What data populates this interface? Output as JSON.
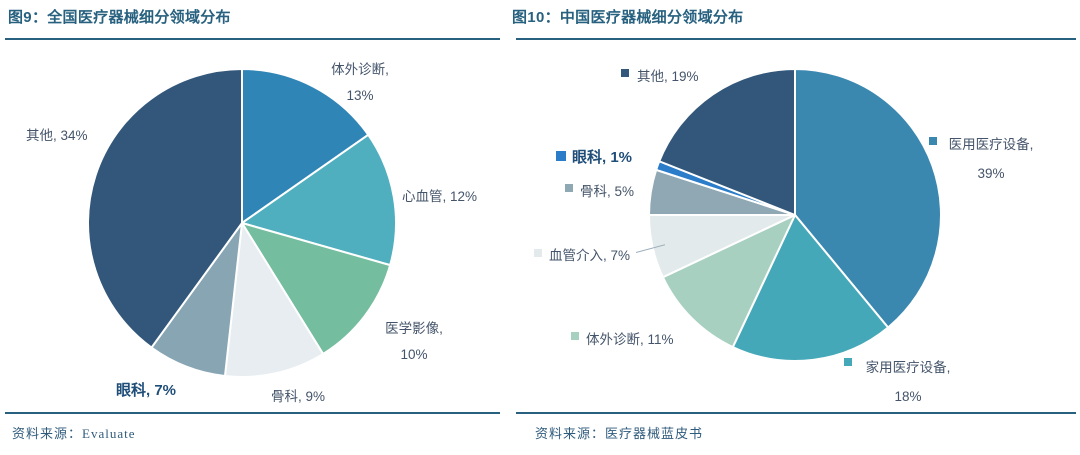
{
  "style_colors": {
    "title": "#27617F",
    "rule_line": "#27617F",
    "label": "#44546A",
    "label_bold": "#1F4E79",
    "source": "#2F5B7C",
    "slice_border": "#ffffff"
  },
  "figures": [
    {
      "id": "fig9",
      "title": "图9：全国医疗器械细分领域分布",
      "source": "资料来源：Evaluate",
      "chart_data": {
        "type": "pie",
        "title": "全国医疗器械细分领域分布",
        "categories": [
          "体外诊断",
          "心血管",
          "医学影像",
          "骨科",
          "眼科",
          "其他"
        ],
        "values": [
          13,
          12,
          10,
          9,
          7,
          34
        ],
        "unit": "percent",
        "start_angle_deg": 0,
        "direction": "clockwise",
        "values_total_shown": 85,
        "colors": [
          "#2F85B6",
          "#4FAFBE",
          "#74BD9F",
          "#E7EDF0",
          "#87A5B3",
          "#33577A"
        ],
        "labels": [
          {
            "line1": "体外诊断,",
            "line2": "13%"
          },
          {
            "line1": "心血管, 12%"
          },
          {
            "line1": "医学影像,",
            "line2": "10%"
          },
          {
            "line1": "骨科, 9%"
          },
          {
            "line1": "眼科, 7%",
            "bold": true
          },
          {
            "line1": "其他, 34%"
          }
        ]
      }
    },
    {
      "id": "fig10",
      "title": "图10：中国医疗器械细分领域分布",
      "source": "资料来源：医疗器械蓝皮书",
      "chart_data": {
        "type": "pie",
        "title": "中国医疗器械细分领域分布",
        "categories": [
          "医用医疗设备",
          "家用医疗设备",
          "体外诊断",
          "血管介入",
          "骨科",
          "眼科",
          "其他"
        ],
        "values": [
          39,
          18,
          11,
          7,
          5,
          1,
          19
        ],
        "unit": "percent",
        "start_angle_deg": 0,
        "direction": "clockwise",
        "values_total_shown": 100,
        "colors": [
          "#3A87B0",
          "#45A8B8",
          "#A8D0C0",
          "#E2EAEC",
          "#8FA8B4",
          "#2B7CC9",
          "#33577A"
        ],
        "labels": [
          {
            "line1": "医用医疗设备,",
            "line2": "39%",
            "marker": true
          },
          {
            "line1": "家用医疗设备,",
            "line2": "18%",
            "marker": true
          },
          {
            "line1": "体外诊断, 11%",
            "marker": true
          },
          {
            "line1": "血管介入, 7%",
            "marker": true,
            "leader_line": true
          },
          {
            "line1": "骨科, 5%",
            "marker": true
          },
          {
            "line1": "眼科, 1%",
            "marker": true,
            "bold": true
          },
          {
            "line1": "其他, 19%",
            "marker": true
          }
        ]
      }
    }
  ]
}
